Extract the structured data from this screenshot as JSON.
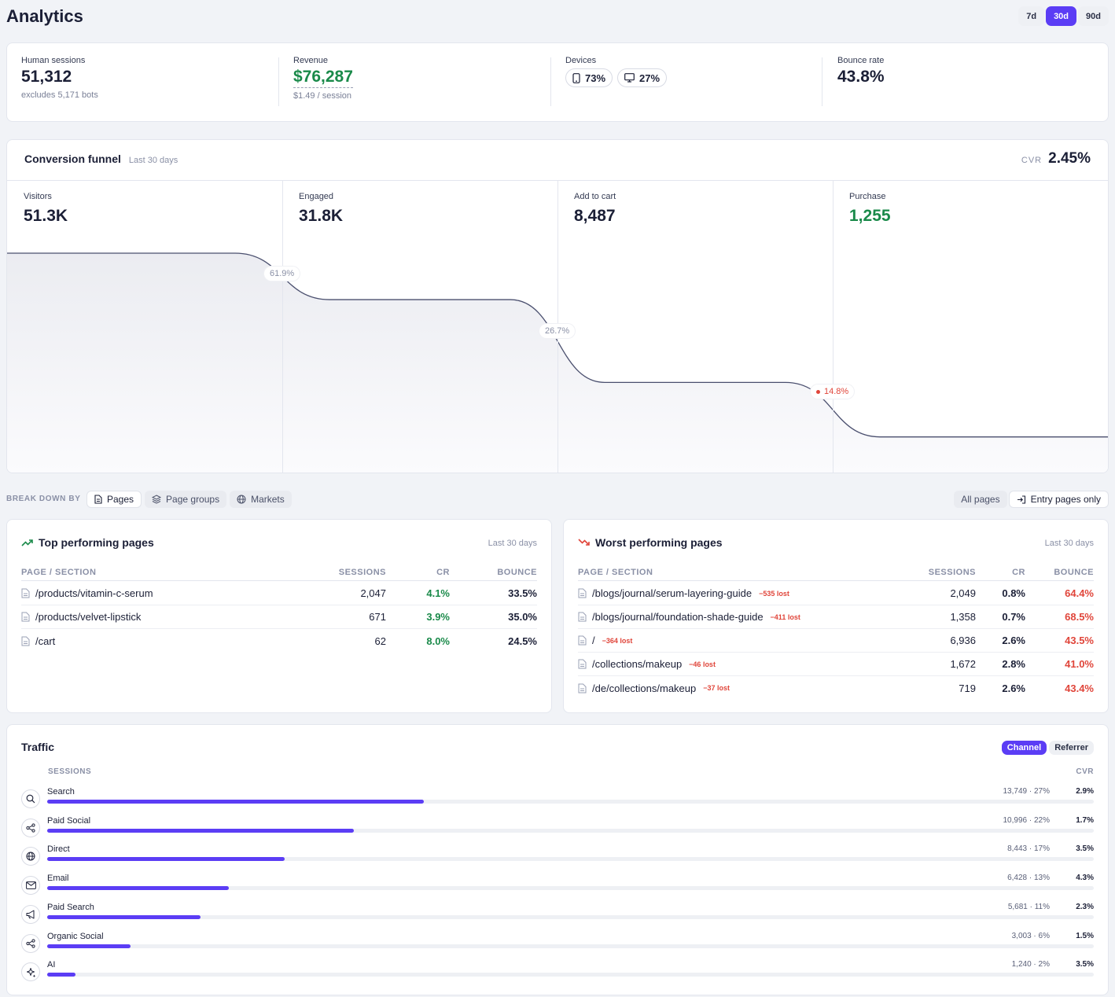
{
  "header": {
    "title": "Analytics",
    "ranges": [
      "7d",
      "30d",
      "90d"
    ],
    "active_range": "30d"
  },
  "kpis": {
    "human_sessions": {
      "label": "Human sessions",
      "value": "51,312",
      "sub": "excludes 5,171 bots"
    },
    "revenue": {
      "label": "Revenue",
      "value": "$76,287",
      "sub": "$1.49 / session"
    },
    "devices": {
      "label": "Devices",
      "mobile": "73%",
      "desktop": "27%"
    },
    "bounce": {
      "label": "Bounce rate",
      "value": "43.8%"
    }
  },
  "funnel": {
    "title": "Conversion funnel",
    "period": "Last 30 days",
    "cvr_label": "CVR",
    "cvr_value": "2.45%",
    "stages": [
      {
        "label": "Visitors",
        "value": "51.3K",
        "count": 51312
      },
      {
        "label": "Engaged",
        "value": "31.8K",
        "count": 31763
      },
      {
        "label": "Add to cart",
        "value": "8,487",
        "count": 8487
      },
      {
        "label": "Purchase",
        "value": "1,255",
        "count": 1255
      }
    ],
    "rates": [
      "61.9%",
      "26.7%",
      "14.8%"
    ]
  },
  "breakdown": {
    "label": "BREAK DOWN BY",
    "tabs": [
      "Pages",
      "Page groups",
      "Markets"
    ],
    "scope": [
      "All pages",
      "Entry pages only"
    ]
  },
  "top_pages": {
    "title": "Top performing pages",
    "period": "Last 30 days",
    "columns": [
      "PAGE / SECTION",
      "SESSIONS",
      "CR",
      "BOUNCE"
    ],
    "rows": [
      {
        "path": "/products/vitamin-c-serum",
        "sessions": "2,047",
        "cr": "4.1%",
        "bounce": "33.5%"
      },
      {
        "path": "/products/velvet-lipstick",
        "sessions": "671",
        "cr": "3.9%",
        "bounce": "35.0%"
      },
      {
        "path": "/cart",
        "sessions": "62",
        "cr": "8.0%",
        "bounce": "24.5%"
      }
    ]
  },
  "worst_pages": {
    "title": "Worst performing pages",
    "period": "Last 30 days",
    "columns": [
      "PAGE / SECTION",
      "SESSIONS",
      "CR",
      "BOUNCE"
    ],
    "rows": [
      {
        "path": "/blogs/journal/serum-layering-guide",
        "lost": "−535 lost",
        "sessions": "2,049",
        "cr": "0.8%",
        "bounce": "64.4%"
      },
      {
        "path": "/blogs/journal/foundation-shade-guide",
        "lost": "−411 lost",
        "sessions": "1,358",
        "cr": "0.7%",
        "bounce": "68.5%"
      },
      {
        "path": "/",
        "lost": "−364 lost",
        "sessions": "6,936",
        "cr": "2.6%",
        "bounce": "43.5%"
      },
      {
        "path": "/collections/makeup",
        "lost": "−46 lost",
        "sessions": "1,672",
        "cr": "2.8%",
        "bounce": "41.0%"
      },
      {
        "path": "/de/collections/makeup",
        "lost": "−37 lost",
        "sessions": "719",
        "cr": "2.6%",
        "bounce": "43.4%"
      }
    ]
  },
  "traffic": {
    "title": "Traffic",
    "toggle": [
      "Channel",
      "Referrer"
    ],
    "active_toggle": "Channel",
    "head_sessions": "SESSIONS",
    "head_cvr": "CVR",
    "channels": [
      {
        "name": "Search",
        "icon": "search-icon",
        "stat": "13,749 · 27%",
        "share": 27,
        "cvr": "2.9%"
      },
      {
        "name": "Paid Social",
        "icon": "share-icon",
        "stat": "10,996 · 22%",
        "share": 22,
        "cvr": "1.7%"
      },
      {
        "name": "Direct",
        "icon": "globe-icon",
        "stat": "8,443 · 17%",
        "share": 17,
        "cvr": "3.5%"
      },
      {
        "name": "Email",
        "icon": "mail-icon",
        "stat": "6,428 · 13%",
        "share": 13,
        "cvr": "4.3%"
      },
      {
        "name": "Paid Search",
        "icon": "megaphone-icon",
        "stat": "5,681 · 11%",
        "share": 11,
        "cvr": "2.3%"
      },
      {
        "name": "Organic Social",
        "icon": "share-icon",
        "stat": "3,003 · 6%",
        "share": 6,
        "cvr": "1.5%"
      },
      {
        "name": "AI",
        "icon": "sparkle-icon",
        "stat": "1,240 · 2%",
        "share": 2,
        "cvr": "3.5%"
      }
    ]
  },
  "colors": {
    "accent": "#5b3df5",
    "positive": "#1a8a4a",
    "negative": "#e0453a"
  }
}
